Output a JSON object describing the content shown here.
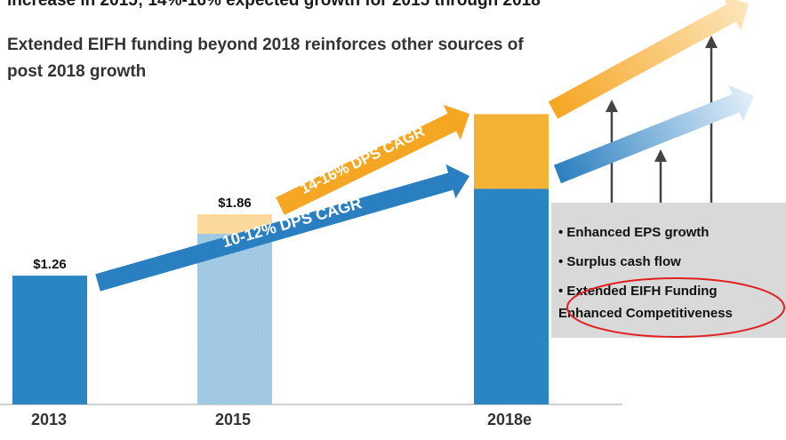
{
  "chart_data": {
    "type": "bar",
    "title": "increase in 2015; 14%-16% expected growth for 2015 through 2018",
    "subtitle": "Extended EIFH funding beyond 2018 reinforces other sources of post 2018 growth",
    "categories": [
      "2013",
      "2015",
      "2018e"
    ],
    "series": [
      {
        "colors": [
          "#2a86c3",
          "#a9cfe6",
          "#2a86c3"
        ],
        "values": [
          1.26,
          1.67,
          2.11
        ]
      },
      {
        "colors": [
          null,
          "#fcd89a",
          "#f5b335"
        ],
        "values": [
          null,
          0.19,
          0.73
        ]
      }
    ],
    "value_labels": [
      "$1.26",
      "$1.86",
      null
    ],
    "annotations": [
      "10-12% DPS CAGR",
      "14-16% DPS CAGR"
    ],
    "bullets": [
      "Enhanced EPS growth",
      "Surplus cash flow",
      "Extended EIFH Funding",
      "Enhanced Competitiveness"
    ]
  }
}
